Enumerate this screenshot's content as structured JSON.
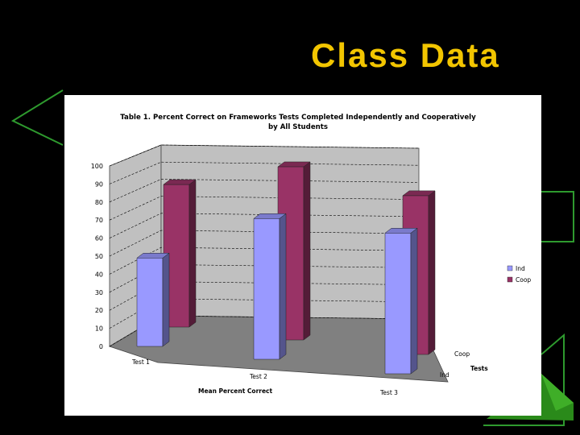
{
  "slide": {
    "title": "Class Data"
  },
  "chart_data": {
    "type": "bar",
    "title": "Table 1. Percent Correct on Frameworks Tests Completed Independently and Cooperatively by All Students",
    "title_lines": [
      "Table 1. Percent Correct on Frameworks Tests Completed Independently and Cooperatively",
      "by All Students"
    ],
    "categories": [
      "Test 1",
      "Test 2",
      "Test 3"
    ],
    "series": [
      {
        "name": "Ind",
        "values": [
          49,
          78,
          78
        ],
        "color": "#9999ff"
      },
      {
        "name": "Coop",
        "values": [
          79,
          96,
          88
        ],
        "color": "#993366"
      }
    ],
    "depth_labels": [
      "Ind",
      "Coop"
    ],
    "xlabel": "Mean Percent Correct",
    "depth_axis_label": "Tests",
    "ylabel": "",
    "ylim": [
      0,
      100
    ],
    "yticks": [
      0,
      10,
      20,
      30,
      40,
      50,
      60,
      70,
      80,
      90,
      100
    ],
    "grid": true,
    "legend_position": "right",
    "wall_color": "#c0c0c0",
    "floor_color": "#808080"
  }
}
